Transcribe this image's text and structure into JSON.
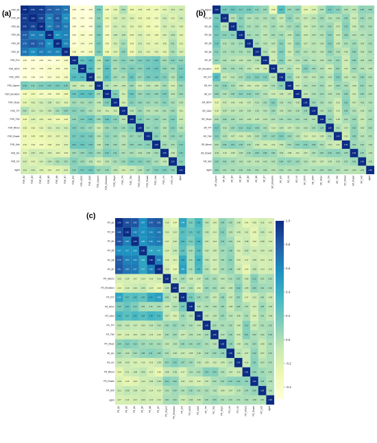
{
  "panels": [
    {
      "label": "(a)"
    },
    {
      "label": "(b)"
    },
    {
      "label": "(c)"
    }
  ],
  "colorbar": {
    "ticks": [
      "1.0",
      "0.8",
      "0.6",
      "0.4",
      "0.2",
      "0.0",
      "-0.2",
      "-0.4"
    ],
    "colors": [
      "#ffffd9",
      "#edf8b1",
      "#c7e9b4",
      "#7fcdbb",
      "#41b6c4",
      "#1d91c0",
      "#225ea8",
      "#0c2c84"
    ],
    "range": [
      -0.5,
      1.0
    ]
  },
  "chart_data": [
    {
      "type": "heatmap",
      "panel": "(a)",
      "labels": [
        "FSR_B2",
        "FSR_B3",
        "FSR_B4",
        "FSR_B5",
        "FSR_B6",
        "FSR_B7",
        "FSR_EVI",
        "FSR_NDVI",
        "FSR_SAVI",
        "FSR_Aspect",
        "FSR_Elevation",
        "FSR_Slope",
        "FSR_TPI",
        "FSR_TWI",
        "FSR_Mined",
        "FSR_Roads",
        "FSR_Sett",
        "FSR_HH",
        "FSR_HV",
        "agbd"
      ],
      "first_row": [
        1.0,
        0.93,
        0.93,
        0.79,
        0.75,
        0.68,
        -0.53,
        -0.55,
        -0.53,
        0.16,
        -0.35,
        -0.24,
        0.0,
        -0.29,
        -0.25,
        -0.3,
        -0.31,
        -0.21,
        -0.13,
        -0.13
      ],
      "first_col": [
        1.0,
        0.93,
        0.93,
        0.79,
        0.75,
        0.68,
        -0.53,
        -0.55,
        -0.53,
        0.16,
        -0.35,
        -0.24,
        0.0,
        -0.29,
        -0.25,
        -0.3,
        -0.31,
        -0.21,
        -0.13,
        -0.13
      ],
      "range": [
        -0.5,
        1.0
      ]
    },
    {
      "type": "heatmap",
      "panel": "(b)",
      "labels": [
        "SR_Aspect",
        "SR_B2",
        "SR_B3",
        "SR_B4",
        "SR_B5",
        "SR_B6",
        "SR_B7",
        "SR_Elevation",
        "SR_EVI",
        "SR_HH",
        "SR_HV",
        "SR_NDVI",
        "SR_SAVI",
        "SR_Slope",
        "SR_TPI",
        "SR_TWI",
        "SR_Mined",
        "SR_Roads",
        "SR_Sett",
        "agbd"
      ],
      "first_row": [
        1.0,
        0.18,
        0.21,
        0.17,
        0.18,
        0.11,
        0.07,
        -0.29,
        0.27,
        0.06,
        0.08,
        -0.23,
        -0.18,
        0.0,
        0.17,
        0.12,
        0.0,
        -0.04,
        0.09,
        0.08
      ],
      "first_col": [
        1.0,
        0.18,
        0.21,
        0.17,
        0.18,
        0.11,
        0.07,
        -0.29,
        0.27,
        0.06,
        0.08,
        -0.23,
        -0.18,
        0.0,
        0.17,
        0.12,
        0.0,
        -0.04,
        0.09,
        0.08
      ],
      "range": [
        -0.5,
        1.0
      ]
    },
    {
      "type": "heatmap",
      "panel": "(c)",
      "labels": [
        "FR_B2",
        "FR_B3",
        "FR_B4",
        "FR_B5",
        "FR_B6",
        "FR_B7",
        "FR_Aspect",
        "FR_Elevation",
        "FR_EVI",
        "FR_NDVI",
        "FR_SAVI",
        "FR_TPI",
        "FR_TWI",
        "FR_Slope",
        "FR_HH",
        "FR_HV",
        "FR_Mined",
        "FR_Roads",
        "FR_Sett",
        "agbd"
      ],
      "first_row": [
        1.0,
        0.85,
        0.83,
        0.57,
        0.79,
        0.81,
        -0.15,
        -0.24,
        0.46,
        0.15,
        0.33,
        -0.03,
        -0.16,
        0.09,
        0.02,
        -0.08,
        -0.24,
        -0.18,
        -0.11,
        -0.17
      ],
      "first_col": [
        1.0,
        0.85,
        0.83,
        0.57,
        0.79,
        0.81,
        -0.15,
        -0.24,
        0.46,
        0.15,
        0.33,
        -0.03,
        -0.16,
        0.09,
        0.02,
        -0.08,
        -0.24,
        -0.18,
        -0.11,
        -0.17
      ],
      "range": [
        -0.5,
        1.0
      ]
    }
  ]
}
